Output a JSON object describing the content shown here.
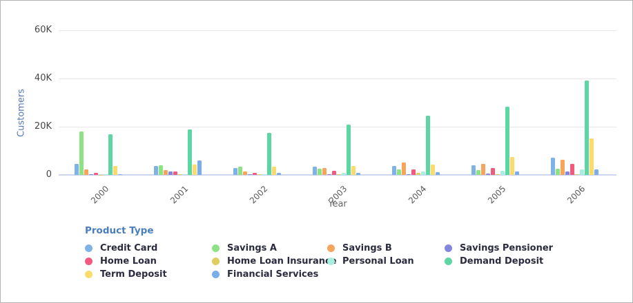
{
  "chart": {
    "y_axis": {
      "label": "Customers",
      "ticks": [
        "60K",
        "40K",
        "20K",
        "0"
      ]
    },
    "x_axis": {
      "label": "Year"
    },
    "legend": {
      "title": "Product Type"
    }
  },
  "chart_data": {
    "type": "bar",
    "title": "",
    "xlabel": "Year",
    "ylabel": "Customers",
    "ylim": [
      0,
      60000
    ],
    "ytick_step": 20000,
    "grid": true,
    "legend_position": "bottom",
    "categories": [
      "2000",
      "2001",
      "2002",
      "2003",
      "2004",
      "2005",
      "2006"
    ],
    "series": [
      {
        "name": "Credit Card",
        "color": "#7fb2e5",
        "values": [
          4500,
          3700,
          2900,
          3300,
          3600,
          4000,
          7100
        ]
      },
      {
        "name": "Savings A",
        "color": "#8de383",
        "values": [
          18000,
          4100,
          3300,
          2700,
          2300,
          1900,
          2500
        ]
      },
      {
        "name": "Savings B",
        "color": "#f7a45d",
        "values": [
          2200,
          1900,
          1500,
          2800,
          5200,
          4600,
          6200
        ]
      },
      {
        "name": "Savings Pensioner",
        "color": "#8287dc",
        "values": [
          200,
          1300,
          300,
          300,
          300,
          500,
          1300
        ]
      },
      {
        "name": "Home Loan",
        "color": "#ef5a7d",
        "values": [
          800,
          1500,
          1000,
          1600,
          2400,
          2900,
          4700
        ]
      },
      {
        "name": "Home Loan Insurance",
        "color": "#dfce5f",
        "values": [
          100,
          200,
          200,
          200,
          800,
          300,
          400
        ]
      },
      {
        "name": "Personal Loan",
        "color": "#a8efe1",
        "values": [
          200,
          300,
          300,
          800,
          1500,
          1700,
          2300
        ]
      },
      {
        "name": "Demand Deposit",
        "color": "#5cd6a2",
        "values": [
          17000,
          19000,
          17300,
          21000,
          24600,
          28200,
          39100
        ]
      },
      {
        "name": "Term Deposit",
        "color": "#fbdb6b",
        "values": [
          3800,
          4300,
          3500,
          3700,
          4200,
          7300,
          15200
        ]
      },
      {
        "name": "Financial Services",
        "color": "#79aee9",
        "values": [
          300,
          6100,
          800,
          900,
          1100,
          1400,
          2300
        ]
      }
    ]
  }
}
